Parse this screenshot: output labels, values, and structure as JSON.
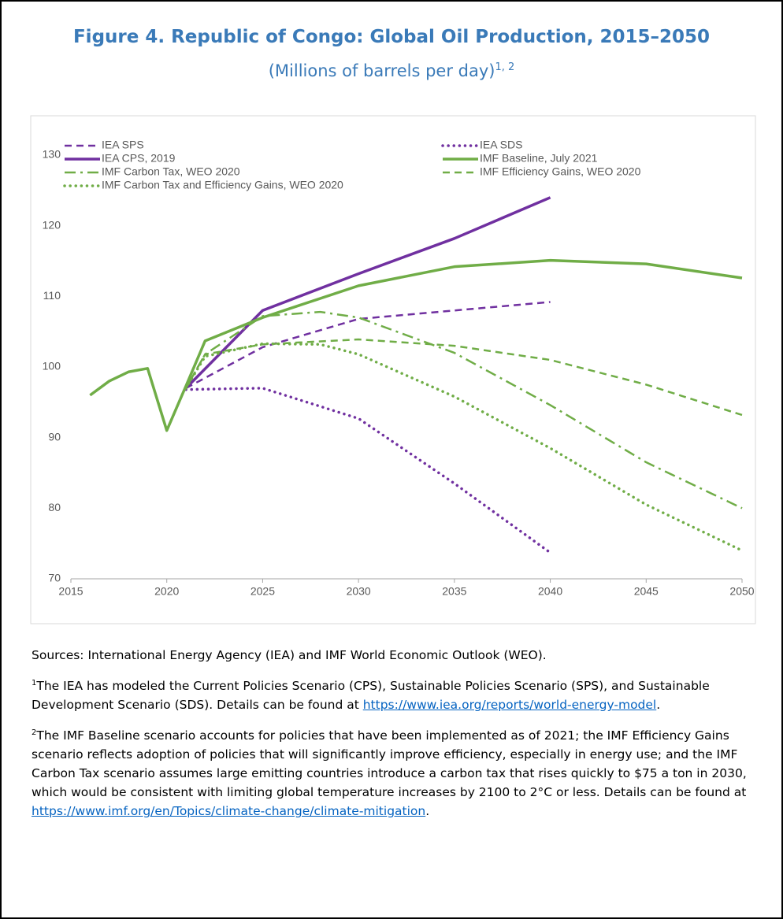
{
  "chart_data": {
    "type": "line",
    "title": "Figure 4. Republic of Congo: Global Oil Production, 2015–2050",
    "subtitle": "(Millions of barrels per day)",
    "subtitle_sup": "1, 2",
    "xlim": [
      2015,
      2050
    ],
    "xticks": [
      2015,
      2020,
      2025,
      2030,
      2035,
      2040,
      2045,
      2050
    ],
    "ylim": [
      70,
      130
    ],
    "yticks": [
      70,
      80,
      90,
      100,
      110,
      120,
      130
    ],
    "grid": false,
    "legend": "top",
    "series": [
      {
        "name": "IEA SPS",
        "color": "#7030a0",
        "style": "dash",
        "x": [
          2021,
          2025,
          2030,
          2040
        ],
        "values": [
          97,
          102.8,
          106.8,
          109.2
        ]
      },
      {
        "name": "IEA SDS",
        "color": "#7030a0",
        "style": "dot",
        "x": [
          2021,
          2025,
          2030,
          2035,
          2040
        ],
        "values": [
          96.8,
          97,
          92.7,
          83.5,
          73.7
        ]
      },
      {
        "name": "IEA CPS, 2019",
        "color": "#7030a0",
        "style": "solid",
        "x": [
          2021,
          2025,
          2030,
          2035,
          2040
        ],
        "values": [
          97,
          108,
          113.2,
          118.2,
          124
        ]
      },
      {
        "name": "IMF Baseline, July 2021",
        "color": "#70ad47",
        "style": "solid",
        "x": [
          2016,
          2017,
          2018,
          2019,
          2020,
          2021,
          2022,
          2025,
          2030,
          2035,
          2040,
          2045,
          2050
        ],
        "values": [
          96,
          98,
          99.3,
          99.8,
          91,
          97.3,
          103.7,
          107,
          111.5,
          114.2,
          115.1,
          114.6,
          112.6
        ]
      },
      {
        "name": "IMF Carbon Tax, WEO 2020",
        "color": "#70ad47",
        "style": "dash-dot",
        "x": [
          2021,
          2022,
          2025,
          2028,
          2030,
          2035,
          2040,
          2045,
          2050
        ],
        "values": [
          97,
          101.8,
          107.2,
          107.8,
          107,
          102,
          94.6,
          86.5,
          80
        ]
      },
      {
        "name": "IMF Efficiency Gains, WEO 2020",
        "color": "#70ad47",
        "style": "dash",
        "x": [
          2021,
          2022,
          2025,
          2030,
          2035,
          2040,
          2045,
          2050
        ],
        "values": [
          97,
          101.8,
          103.2,
          103.9,
          103,
          101,
          97.5,
          93.2
        ]
      },
      {
        "name": "IMF Carbon Tax and Efficiency Gains, WEO 2020",
        "color": "#70ad47",
        "style": "dot",
        "x": [
          2021,
          2022,
          2025,
          2028,
          2030,
          2035,
          2040,
          2045,
          2050
        ],
        "values": [
          97,
          101.5,
          103.3,
          103.2,
          101.8,
          95.8,
          88.5,
          80.5,
          74
        ]
      }
    ]
  },
  "notes": {
    "sources": "Sources: International Energy Agency (IEA) and IMF World Economic Outlook (WEO).",
    "note1_mark": "1",
    "note1_text": "The IEA has modeled the Current Policies Scenario (CPS), Sustainable Policies Scenario (SPS), and Sustainable Development Scenario (SDS). Details can be found at ",
    "note1_link": "https://www.iea.org/reports/world-energy-model",
    "note1_end": ".",
    "note2_mark": "2",
    "note2_text": "The IMF Baseline scenario accounts for policies that have been implemented as of 2021; the IMF Efficiency Gains scenario reflects adoption of policies that will significantly improve efficiency, especially in energy use; and the IMF Carbon Tax scenario assumes large emitting countries introduce a carbon tax that rises quickly to $75 a ton in 2030, which would be consistent with limiting global temperature increases by 2100 to 2°C or less. Details can be found at ",
    "note2_link": "https://www.imf.org/en/Topics/climate-change/climate-mitigation",
    "note2_end": "."
  }
}
